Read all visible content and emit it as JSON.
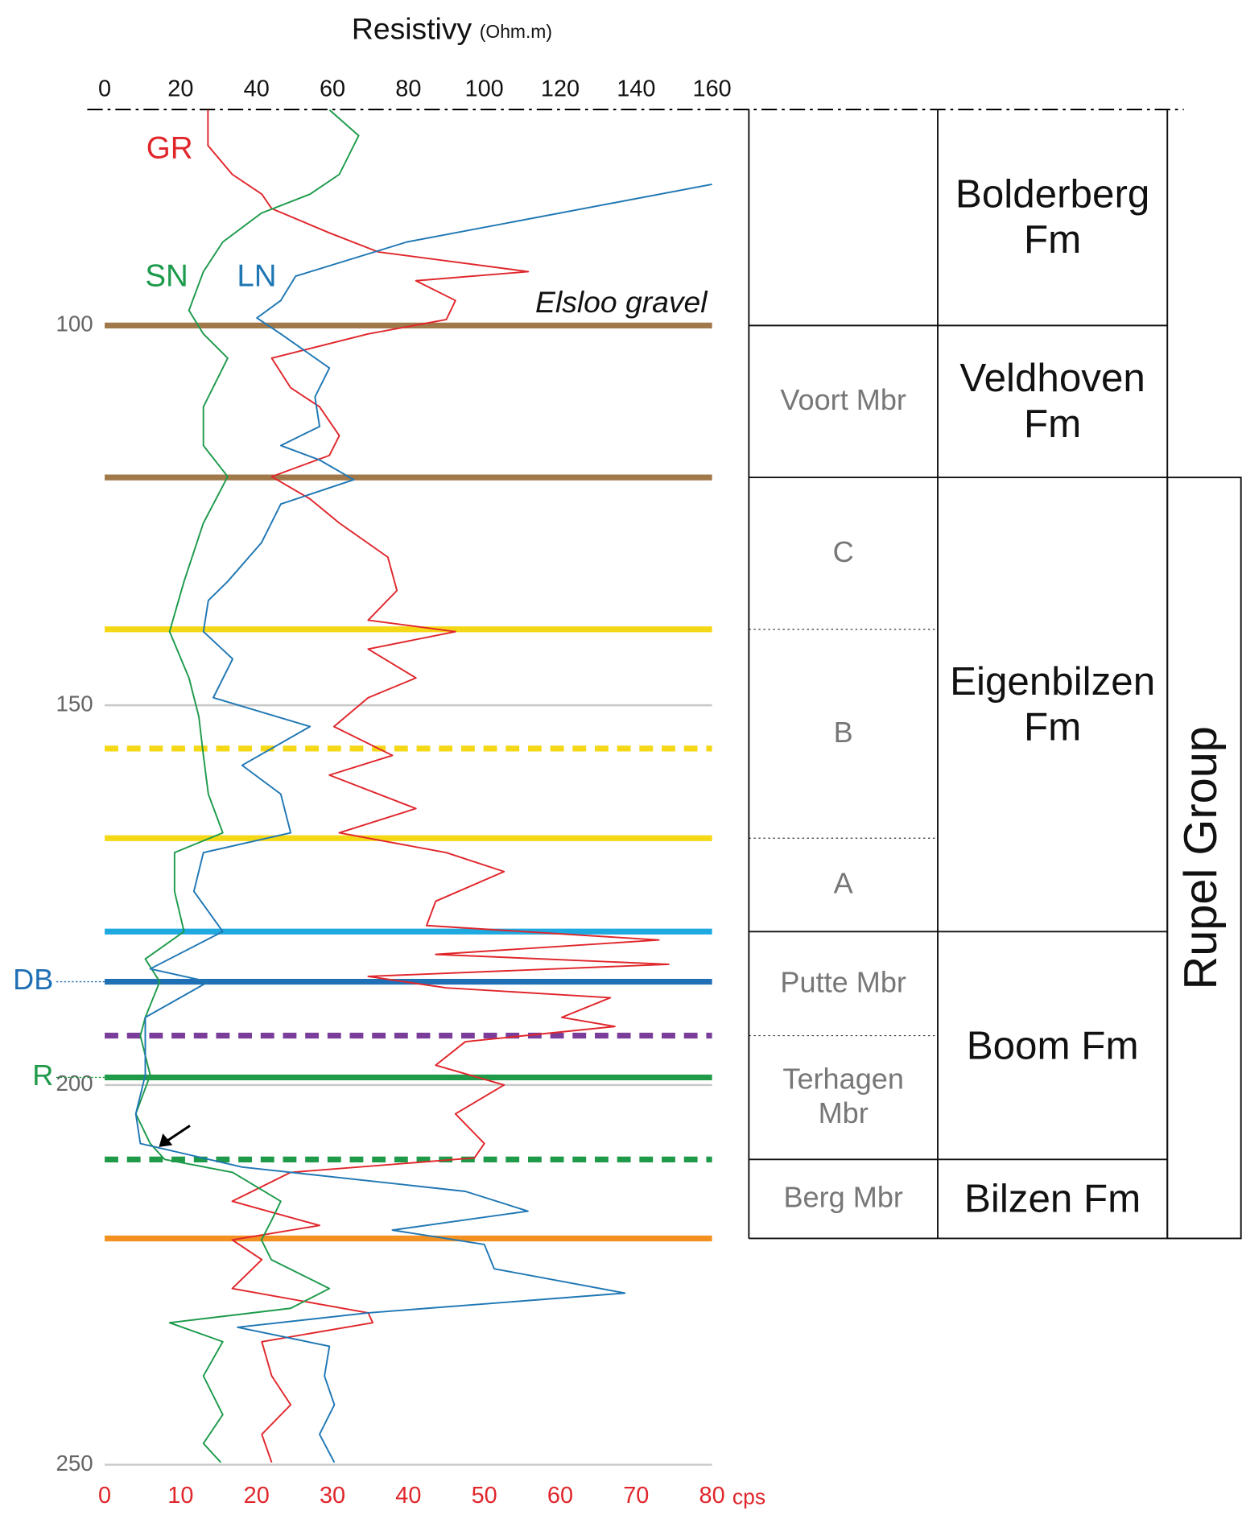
{
  "chart_data": {
    "type": "well-log",
    "title": "Resistivy",
    "title_unit": "(Ohm.m)",
    "xlim": [
      0,
      160
    ],
    "xticks": [
      0,
      20,
      40,
      60,
      80,
      100,
      120,
      140,
      160
    ],
    "x2lim": [
      0,
      80
    ],
    "x2ticks": [
      0,
      10,
      20,
      30,
      40,
      50,
      60,
      70,
      80
    ],
    "x2_label": "cps",
    "x2_color": "#e0262b",
    "ylim": [
      250,
      71.5
    ],
    "yticks": [
      100,
      150,
      200,
      250
    ],
    "grid": true,
    "series": [
      {
        "name": "GR",
        "color": "#e0262b",
        "axis": "x2",
        "depth": [
          71.6,
          76.3,
          80.1,
          82.7,
          84.6,
          87.8,
          90.3,
          92.9,
          94.1,
          96.7,
          99.2,
          101.1,
          104.3,
          108.2,
          110.7,
          114.5,
          117.1,
          119.9,
          122.8,
          126,
          130.5,
          134.9,
          138.8,
          140.3,
          142.6,
          146.4,
          149,
          152.8,
          156.6,
          159.2,
          163.6,
          166.8,
          169.4,
          171.9,
          175.8,
          179,
          180.9,
          182.8,
          184.1,
          185.7,
          187.2,
          188.5,
          191.1,
          192.3,
          194.3,
          197.4,
          200,
          203.8,
          207.7,
          209.6,
          211.5,
          215.3,
          218.5,
          220.4,
          223,
          226.8,
          230,
          231.3,
          233.8,
          238.3,
          242.1,
          246,
          249.7
        ],
        "values": [
          13.6,
          13.6,
          16.8,
          20.7,
          22,
          29.6,
          36,
          55.8,
          41,
          46.2,
          45,
          34.7,
          22,
          24.5,
          28.3,
          30.9,
          29.6,
          22,
          27,
          30.9,
          37.3,
          38.5,
          34.7,
          46.2,
          34.7,
          41,
          34.7,
          30.2,
          37.9,
          29.6,
          41,
          30.9,
          45,
          52.6,
          43.6,
          42.4,
          73,
          43.6,
          74.3,
          34.7,
          45,
          66.6,
          60.2,
          67.2,
          47.5,
          43.6,
          52.6,
          46.2,
          50,
          48.7,
          24.5,
          16.8,
          28.3,
          16.8,
          20.7,
          16.8,
          34.7,
          35.3,
          20.7,
          22,
          24.5,
          20.7,
          22
        ]
      },
      {
        "name": "SN",
        "color": "#1d9a4b",
        "axis": "x",
        "depth": [
          71.6,
          75,
          80.1,
          82.7,
          85.2,
          89,
          92.9,
          98,
          101.1,
          104.3,
          110.7,
          115.8,
          119.9,
          126,
          133.7,
          140.3,
          146.4,
          151.5,
          156.6,
          161.7,
          166.8,
          169.4,
          174.5,
          179.8,
          183.4,
          186.4,
          191.1,
          193.5,
          198.7,
          203.8,
          207.7,
          209.8,
          211.5,
          215.3,
          217.9,
          220.4,
          223,
          226.8,
          229.4,
          231.3,
          233.8,
          238.3,
          243.4,
          247.2,
          249.7
        ],
        "values": [
          59.2,
          66.9,
          61.8,
          54.1,
          41.3,
          31.1,
          26,
          22.2,
          26,
          32.4,
          26,
          26,
          32.4,
          26,
          20.9,
          17.1,
          22.2,
          24.8,
          26,
          27.3,
          31.1,
          18.4,
          18.4,
          20.9,
          10.7,
          14.5,
          10.7,
          9.4,
          12,
          8.2,
          12,
          15.8,
          33.7,
          46.4,
          43.9,
          41.3,
          43.9,
          59.2,
          49,
          17.1,
          31.1,
          26,
          31.1,
          26,
          30.6
        ]
      },
      {
        "name": "LN",
        "color": "#1f77b4",
        "axis": "x",
        "depth": [
          81.4,
          89,
          93.5,
          96.7,
          99,
          101.1,
          105.6,
          109.4,
          113.3,
          115.8,
          117.7,
          120.3,
          123.5,
          128.6,
          133.7,
          136.2,
          140.3,
          143.9,
          149,
          152.8,
          157.9,
          161.7,
          166.8,
          169.4,
          174.5,
          179.8,
          184.7,
          186.4,
          191.1,
          198.7,
          203.8,
          207.7,
          210.8,
          214,
          216.6,
          219.1,
          221,
          224.2,
          227.4,
          230,
          231.9,
          234.4,
          238.3,
          242.1,
          246,
          249.7
        ],
        "values": [
          160,
          79.6,
          50.3,
          46.4,
          40.1,
          46.4,
          59.2,
          55.4,
          56.6,
          46.4,
          56.6,
          65.6,
          46.4,
          41.3,
          32.4,
          27.3,
          26,
          33.7,
          28.6,
          54.1,
          36.2,
          46.4,
          49,
          26,
          23.5,
          31.1,
          12,
          27.3,
          10.7,
          10.7,
          8.2,
          9.4,
          36.2,
          95,
          111.5,
          75.8,
          100,
          102.6,
          137,
          69.4,
          35,
          59.2,
          57.9,
          60.5,
          56.6,
          60.5
        ]
      }
    ],
    "horizons": [
      {
        "depth": 100,
        "color": "#a0784a",
        "style": "solid"
      },
      {
        "depth": 120,
        "color": "#a0784a",
        "style": "solid"
      },
      {
        "depth": 140,
        "color": "#f5d815",
        "style": "solid"
      },
      {
        "depth": 155.7,
        "color": "#f5d815",
        "style": "dashed"
      },
      {
        "depth": 167.5,
        "color": "#f5d815",
        "style": "solid"
      },
      {
        "depth": 179.8,
        "color": "#1ea9e1",
        "style": "solid"
      },
      {
        "depth": 186.4,
        "color": "#1f6fb5",
        "style": "solid",
        "label": "DB"
      },
      {
        "depth": 193.5,
        "color": "#7a3e9a",
        "style": "dashed"
      },
      {
        "depth": 199,
        "color": "#1f9a48",
        "style": "solid",
        "label": "R"
      },
      {
        "depth": 209.8,
        "color": "#1f9a48",
        "style": "dashed"
      },
      {
        "depth": 220.2,
        "color": "#f29020",
        "style": "solid"
      }
    ],
    "annotation": "Elsloo gravel"
  },
  "stratigraphy": {
    "members": [
      {
        "label": "Voort Mbr",
        "top": 100,
        "base": 120
      },
      {
        "label": "C",
        "top": 120,
        "base": 140
      },
      {
        "label": "B",
        "top": 140,
        "base": 167.5
      },
      {
        "label": "A",
        "top": 167.5,
        "base": 179.8
      },
      {
        "label": "Putte Mbr",
        "top": 179.8,
        "base": 193.5
      },
      {
        "label": "Terhagen Mbr",
        "top": 193.5,
        "base": 209.8
      },
      {
        "label": "Berg Mbr",
        "top": 209.8,
        "base": 220.2
      }
    ],
    "formations": [
      {
        "label": "Bolderberg Fm",
        "top": 71.5,
        "base": 100
      },
      {
        "label": "Veldhoven Fm",
        "top": 100,
        "base": 120
      },
      {
        "label": "Eigenbilzen Fm",
        "top": 120,
        "base": 179.8
      },
      {
        "label": "Boom Fm",
        "top": 179.8,
        "base": 209.8
      },
      {
        "label": "Bilzen Fm",
        "top": 209.8,
        "base": 220.2
      }
    ],
    "group": {
      "label": "Rupel Group",
      "top": 120,
      "base": 220.2
    }
  }
}
